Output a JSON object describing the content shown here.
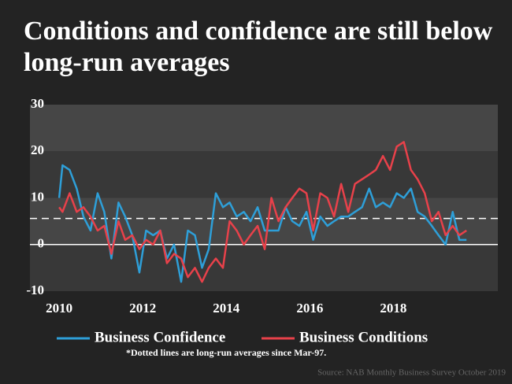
{
  "chart_data": {
    "type": "line",
    "title": "Conditions and confidence are still below long-run averages",
    "x": [
      2010.0,
      2010.08,
      2010.25,
      2010.42,
      2010.58,
      2010.75,
      2010.92,
      2011.08,
      2011.25,
      2011.42,
      2011.58,
      2011.75,
      2011.92,
      2012.08,
      2012.25,
      2012.42,
      2012.58,
      2012.75,
      2012.92,
      2013.08,
      2013.25,
      2013.42,
      2013.58,
      2013.75,
      2013.92,
      2014.08,
      2014.25,
      2014.42,
      2014.58,
      2014.75,
      2014.92,
      2015.08,
      2015.25,
      2015.42,
      2015.58,
      2015.75,
      2015.92,
      2016.08,
      2016.25,
      2016.42,
      2016.58,
      2016.75,
      2016.92,
      2017.08,
      2017.25,
      2017.42,
      2017.58,
      2017.75,
      2017.92,
      2018.08,
      2018.25,
      2018.42,
      2018.58,
      2018.75,
      2018.92,
      2019.08,
      2019.25,
      2019.42,
      2019.58,
      2019.75
    ],
    "series": [
      {
        "name": "Business Confidence",
        "color": "#2e9fd8",
        "values": [
          10,
          17,
          16,
          12,
          6,
          3,
          11,
          7,
          -3,
          9,
          6,
          2,
          -6,
          3,
          2,
          3,
          -3,
          0,
          -8,
          3,
          2,
          -5,
          -1,
          11,
          8,
          9,
          6,
          7,
          5,
          8,
          3,
          3,
          3,
          8,
          5,
          4,
          7,
          1,
          6,
          4,
          5,
          6,
          6,
          7,
          8,
          12,
          8,
          9,
          8,
          11,
          10,
          12,
          7,
          6,
          4,
          2,
          0,
          7,
          1,
          1
        ]
      },
      {
        "name": "Business Conditions",
        "color": "#e8414a",
        "values": [
          8,
          7,
          11,
          7,
          8,
          6,
          3,
          4,
          -2,
          5,
          1,
          2,
          -1,
          1,
          0,
          3,
          -4,
          -2,
          -3,
          -7,
          -5,
          -8,
          -5,
          -3,
          -5,
          5,
          3,
          0,
          2,
          4,
          -1,
          10,
          5,
          8,
          10,
          12,
          11,
          3,
          11,
          10,
          6,
          13,
          7,
          13,
          14,
          15,
          16,
          19,
          16,
          21,
          22,
          16,
          14,
          11,
          5,
          7,
          2,
          4,
          2,
          3
        ]
      }
    ],
    "average_line": 5.6,
    "xlim": [
      2009.3,
      2020.5
    ],
    "xticks": [
      2010,
      2012,
      2014,
      2016,
      2018
    ],
    "ylim": [
      -10,
      30
    ],
    "yticks": [
      -10,
      0,
      10,
      20,
      30
    ],
    "footnote": "*Dotted lines are long-run averages since Mar-97.",
    "source": "Source: NAB Monthly Business Survey October 2019"
  }
}
